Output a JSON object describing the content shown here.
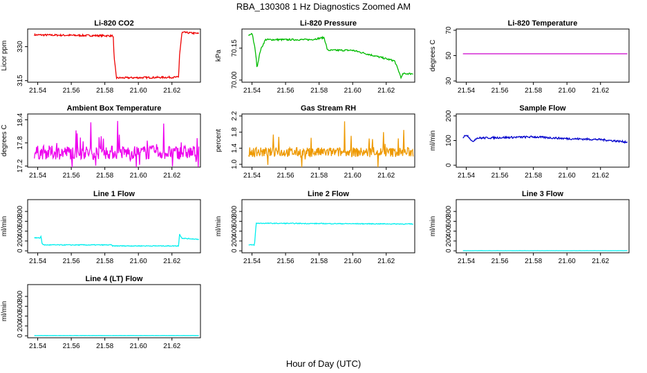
{
  "figure": {
    "title": "RBA_130308  1 Hz Diagnostics Zoomed AM",
    "xlabel": "Hour of Day (UTC)"
  },
  "chart_data": [
    {
      "type": "line",
      "title": "Li-820 CO2",
      "ylabel": "Licor ppm",
      "xlim": [
        21.534,
        21.637
      ],
      "ylim": [
        314.3,
        337.8
      ],
      "x_ticks": [
        "21.54",
        "21.56",
        "21.58",
        "21.60",
        "21.62"
      ],
      "y_ticks": [
        315,
        330
      ],
      "y_tick_labels": [
        "315",
        "330"
      ],
      "color": "#ee0000",
      "noise": 0.4,
      "series": [
        {
          "x": [
            21.538,
            21.585,
            21.5855,
            21.587,
            21.624,
            21.6245,
            21.626,
            21.636
          ],
          "y": [
            335.2,
            334.8,
            325.0,
            316.2,
            316.5,
            326.0,
            336.3,
            335.8
          ]
        }
      ]
    },
    {
      "type": "line",
      "title": "Li-820 Pressure",
      "ylabel": "kPa",
      "xlim": [
        21.534,
        21.637
      ],
      "ylim": [
        69.99,
        70.24
      ],
      "x_ticks": [
        "21.54",
        "21.56",
        "21.58",
        "21.60",
        "21.62"
      ],
      "y_ticks": [
        70.0,
        70.15
      ],
      "y_tick_labels": [
        "70.00",
        "70.15"
      ],
      "color": "#00bb00",
      "noise": 0.004,
      "series": [
        {
          "x": [
            21.538,
            21.54,
            21.542,
            21.543,
            21.545,
            21.548,
            21.56,
            21.575,
            21.583,
            21.585,
            21.6,
            21.61,
            21.62,
            21.625,
            21.627,
            21.629,
            21.63,
            21.636
          ],
          "y": [
            70.21,
            70.22,
            70.14,
            70.06,
            70.14,
            70.19,
            70.19,
            70.19,
            70.2,
            70.14,
            70.14,
            70.12,
            70.1,
            70.09,
            70.05,
            70.01,
            70.03,
            70.03
          ]
        }
      ]
    },
    {
      "type": "line",
      "title": "Li-820 Temperature",
      "ylabel": "degrees C",
      "xlim": [
        21.534,
        21.637
      ],
      "ylim": [
        29,
        71
      ],
      "x_ticks": [
        "21.54",
        "21.56",
        "21.58",
        "21.60",
        "21.62"
      ],
      "y_ticks": [
        30,
        50,
        70
      ],
      "y_tick_labels": [
        "30",
        "50",
        "70"
      ],
      "color": "#cc00cc",
      "noise": 0,
      "series": [
        {
          "x": [
            21.538,
            21.636
          ],
          "y": [
            51.4,
            51.4
          ]
        }
      ]
    },
    {
      "type": "line",
      "title": "Ambient Box Temperature",
      "ylabel": "degrees C",
      "xlim": [
        21.534,
        21.637
      ],
      "ylim": [
        17.17,
        18.55
      ],
      "x_ticks": [
        "21.54",
        "21.56",
        "21.58",
        "21.60",
        "21.62"
      ],
      "y_ticks": [
        17.2,
        17.8,
        18.4
      ],
      "y_tick_labels": [
        "17.2",
        "17.8",
        "18.4"
      ],
      "color": "#ee00ee",
      "noise": 0,
      "spikes": {
        "base": 17.55,
        "amp": 0.18,
        "up": 0.8,
        "down": 0.35,
        "rate": 0.08
      },
      "series": [
        {
          "x": [
            21.538,
            21.636
          ],
          "y": [
            17.55,
            17.55
          ]
        }
      ]
    },
    {
      "type": "line",
      "title": "Gas Stream RH",
      "ylabel": "percent",
      "xlim": [
        21.534,
        21.637
      ],
      "ylim": [
        0.93,
        2.25
      ],
      "x_ticks": [
        "21.54",
        "21.56",
        "21.58",
        "21.60",
        "21.62"
      ],
      "y_ticks": [
        1.0,
        1.4,
        1.8,
        2.2
      ],
      "y_tick_labels": [
        "1.0",
        "1.4",
        "1.8",
        "2.2"
      ],
      "color": "#ee9900",
      "noise": 0,
      "spikes": {
        "base": 1.3,
        "amp": 0.12,
        "up": 0.8,
        "down": 0.25,
        "rate": 0.07
      },
      "series": [
        {
          "x": [
            21.538,
            21.636
          ],
          "y": [
            1.3,
            1.3
          ]
        }
      ]
    },
    {
      "type": "line",
      "title": "Sample Flow",
      "ylabel": "ml/min",
      "xlim": [
        21.534,
        21.637
      ],
      "ylim": [
        -8,
        208
      ],
      "x_ticks": [
        "21.54",
        "21.56",
        "21.58",
        "21.60",
        "21.62"
      ],
      "y_ticks": [
        0,
        100,
        200
      ],
      "y_tick_labels": [
        "0",
        "100",
        "200"
      ],
      "color": "#0000cc",
      "noise": 4,
      "series": [
        {
          "x": [
            21.538,
            21.54,
            21.542,
            21.5435,
            21.546,
            21.58,
            21.6,
            21.62,
            21.636
          ],
          "y": [
            112,
            124,
            112,
            94,
            110,
            115,
            108,
            104,
            94
          ]
        }
      ]
    },
    {
      "type": "line",
      "title": "Line 1 Flow",
      "ylabel": "ml/min",
      "xlim": [
        21.534,
        21.637
      ],
      "ylim": [
        -40,
        1040
      ],
      "x_ticks": [
        "21.54",
        "21.56",
        "21.58",
        "21.60",
        "21.62"
      ],
      "y_ticks": [
        0,
        200,
        400,
        600,
        800
      ],
      "y_tick_labels": [
        "0",
        "200",
        "400",
        "600",
        "800"
      ],
      "color": "#00eeee",
      "noise": 8,
      "series": [
        {
          "x": [
            21.538,
            21.5415,
            21.542,
            21.5425,
            21.5435,
            21.584,
            21.5845,
            21.624,
            21.6245,
            21.626,
            21.636
          ],
          "y": [
            265,
            260,
            300,
            160,
            120,
            120,
            100,
            100,
            340,
            255,
            235
          ]
        }
      ]
    },
    {
      "type": "line",
      "title": "Line 2 Flow",
      "ylabel": "ml/min",
      "xlim": [
        21.534,
        21.637
      ],
      "ylim": [
        -40,
        1040
      ],
      "x_ticks": [
        "21.54",
        "21.56",
        "21.58",
        "21.60",
        "21.62"
      ],
      "y_ticks": [
        0,
        200,
        400,
        600,
        800
      ],
      "y_tick_labels": [
        "0",
        "200",
        "400",
        "600",
        "800"
      ],
      "color": "#00eeee",
      "noise": 8,
      "series": [
        {
          "x": [
            21.538,
            21.5415,
            21.5425,
            21.636
          ],
          "y": [
            120,
            120,
            560,
            545
          ]
        }
      ]
    },
    {
      "type": "line",
      "title": "Line 3 Flow",
      "ylabel": "ml/min",
      "xlim": [
        21.534,
        21.637
      ],
      "ylim": [
        -40,
        1040
      ],
      "x_ticks": [
        "21.54",
        "21.56",
        "21.58",
        "21.60",
        "21.62"
      ],
      "y_ticks": [
        0,
        200,
        400,
        600,
        800
      ],
      "y_tick_labels": [
        "0",
        "200",
        "400",
        "600",
        "800"
      ],
      "color": "#00eeee",
      "noise": 1.5,
      "series": [
        {
          "x": [
            21.538,
            21.636
          ],
          "y": [
            3,
            3
          ]
        }
      ]
    },
    {
      "type": "line",
      "title": "Line 4 (LT) Flow",
      "ylabel": "ml/min",
      "xlim": [
        21.534,
        21.637
      ],
      "ylim": [
        -40,
        1040
      ],
      "x_ticks": [
        "21.54",
        "21.56",
        "21.58",
        "21.60",
        "21.62"
      ],
      "y_ticks": [
        0,
        200,
        400,
        600,
        800
      ],
      "y_tick_labels": [
        "0",
        "200",
        "400",
        "600",
        "800"
      ],
      "color": "#00eeee",
      "noise": 1.5,
      "series": [
        {
          "x": [
            21.538,
            21.636
          ],
          "y": [
            5,
            5
          ]
        }
      ]
    }
  ]
}
